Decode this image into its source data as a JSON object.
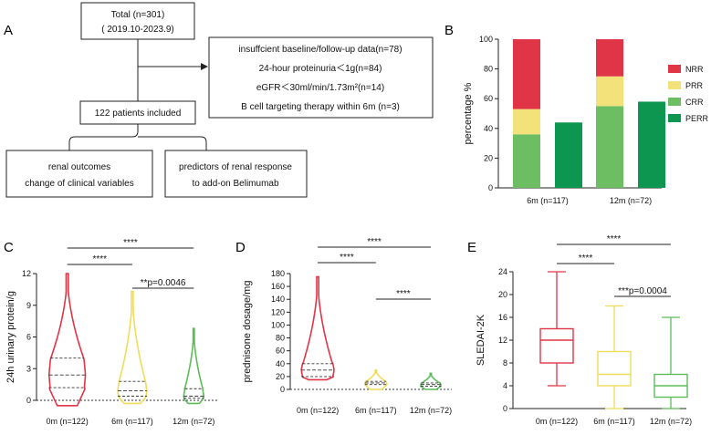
{
  "panels": {
    "A": "A",
    "B": "B",
    "C": "C",
    "D": "D",
    "E": "E"
  },
  "flowchart": {
    "total_line1": "Total (n=301)",
    "total_line2": "( 2019.10-2023.9)",
    "exclusions": [
      "insuffcient baseline/follow-up data(n=78)",
      "24-hour proteinuria＜1g(n=84)",
      "eGFR＜30ml/min/1.73m²(n=14)",
      "B cell targeting therapy within 6m (n=3)"
    ],
    "included": "122 patients included",
    "outcome_left_line1": "renal outcomes",
    "outcome_left_line2": "change of clinical variables",
    "outcome_right_line1": "predictors of renal response",
    "outcome_right_line2": "to add-on Belimumab"
  },
  "colors": {
    "NRR": "#e03546",
    "PRR": "#f3e27a",
    "CRR": "#6dbd63",
    "PERR": "#0d9650",
    "c0m": "#e03546",
    "c6m": "#f0dc5a",
    "c12m": "#5cbd58"
  },
  "chart_data": [
    {
      "id": "B",
      "type": "bar",
      "stacked": true,
      "ylabel": "percentage %",
      "ylim": [
        0,
        100
      ],
      "yticks": [
        0,
        20,
        40,
        60,
        80,
        100
      ],
      "groups": [
        "6m (n=117)",
        "12m (n=72)"
      ],
      "legend": [
        "NRR",
        "PRR",
        "CRR",
        "PERR"
      ],
      "stacked_series": [
        {
          "group": "6m (n=117)",
          "CRR": 36,
          "PRR": 17,
          "NRR": 47
        },
        {
          "group": "12m (n=72)",
          "CRR": 55,
          "PRR": 20,
          "NRR": 25
        }
      ],
      "perr": [
        {
          "group": "6m (n=117)",
          "value": 44
        },
        {
          "group": "12m (n=72)",
          "value": 58
        }
      ]
    },
    {
      "id": "C",
      "type": "violin",
      "ylabel": "24h urinary protein/g",
      "ylim": [
        0,
        12
      ],
      "yticks": [
        0,
        3,
        6,
        9,
        12
      ],
      "categories": [
        "0m (n=122)",
        "6m (n=117)",
        "12m (n=72)"
      ],
      "medians": [
        2.4,
        0.9,
        0.4
      ],
      "q1": [
        1.2,
        0.4,
        0.2
      ],
      "q3": [
        4.0,
        1.8,
        1.1
      ],
      "mins": [
        -0.5,
        -0.3,
        -0.3
      ],
      "maxs": [
        12,
        10.3,
        6.8
      ],
      "comparisons": [
        {
          "from": 0,
          "to": 2,
          "label": "****"
        },
        {
          "from": 0,
          "to": 1,
          "label": "****"
        },
        {
          "from": 1,
          "to": 2,
          "label": "**p=0.0046"
        }
      ]
    },
    {
      "id": "D",
      "type": "violin",
      "ylabel": "prednisone dosage/mg",
      "ylim": [
        0,
        180
      ],
      "yticks": [
        0,
        20,
        40,
        60,
        80,
        100,
        120,
        140,
        160,
        180
      ],
      "categories": [
        "0m (n=122)",
        "6m (n=117)",
        "12m (n=72)"
      ],
      "medians": [
        30,
        10,
        7.5
      ],
      "q1": [
        20,
        7.5,
        5
      ],
      "q3": [
        40,
        12.5,
        10
      ],
      "mins": [
        15,
        0,
        0
      ],
      "maxs": [
        175,
        30,
        25
      ],
      "comparisons": [
        {
          "from": 0,
          "to": 2,
          "label": "****"
        },
        {
          "from": 0,
          "to": 1,
          "label": "****"
        },
        {
          "from": 1,
          "to": 2,
          "label": "****"
        }
      ]
    },
    {
      "id": "E",
      "type": "box",
      "ylabel": "SLEDAI-2K",
      "ylim": [
        0,
        24
      ],
      "yticks": [
        0,
        4,
        8,
        12,
        16,
        20,
        24
      ],
      "categories": [
        "0m (n=122)",
        "6m (n=117)",
        "12m (n=72)"
      ],
      "mins": [
        4,
        0,
        0
      ],
      "q1": [
        8,
        4,
        2
      ],
      "medians": [
        12,
        6,
        4
      ],
      "q3": [
        14,
        10,
        6
      ],
      "maxs": [
        24,
        18,
        16
      ],
      "comparisons": [
        {
          "from": 0,
          "to": 2,
          "label": "****"
        },
        {
          "from": 0,
          "to": 1,
          "label": "****"
        },
        {
          "from": 1,
          "to": 2,
          "label": "***p=0.0004"
        }
      ]
    }
  ]
}
